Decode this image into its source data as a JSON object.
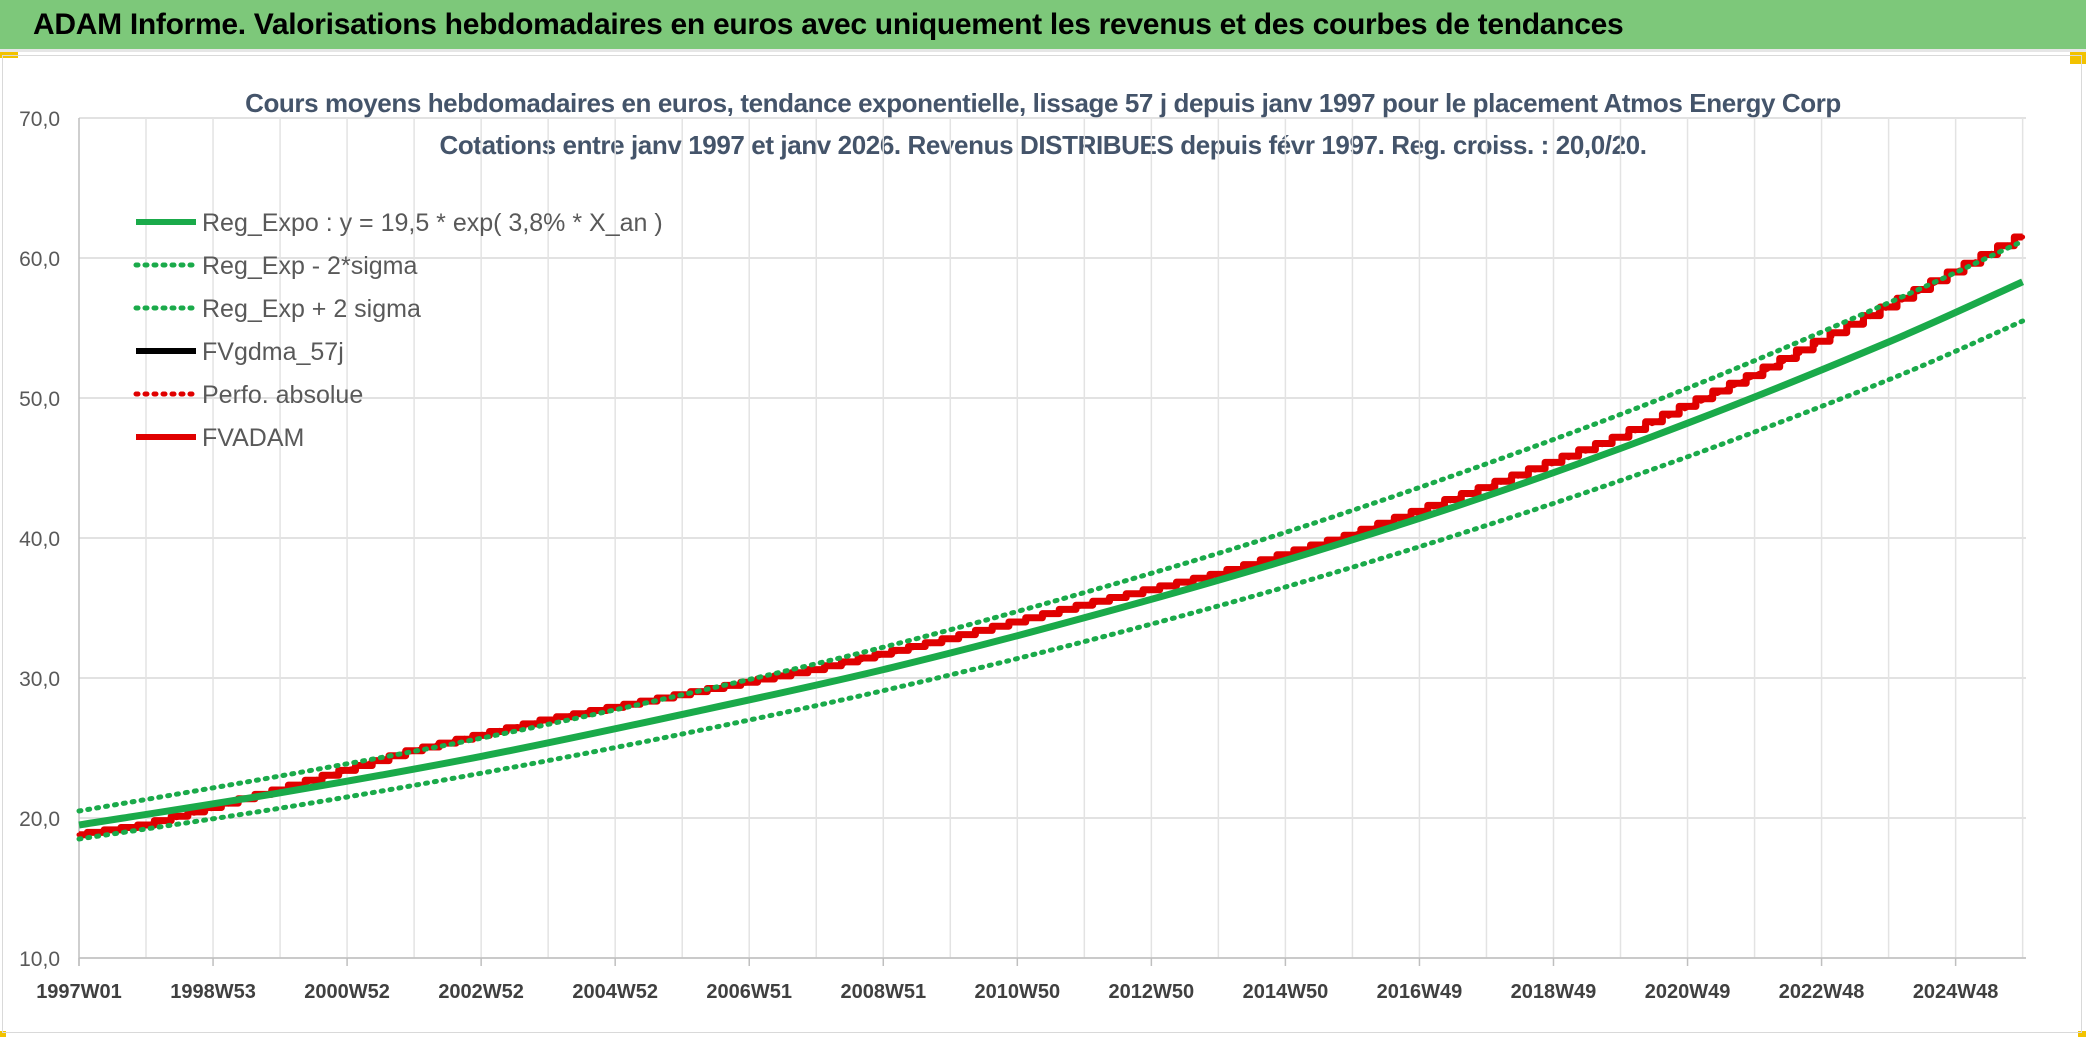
{
  "banner": {
    "title": "ADAM Informe. Valorisations hebdomadaires en euros avec uniquement les revenus et des courbes de tendances",
    "background": "#7dc87a"
  },
  "chart_data": {
    "type": "line",
    "title": "Cours moyens hebdomadaires en euros, tendance exponentielle, lissage 57 j depuis janv 1997 pour le placement Atmos Energy Corp",
    "subtitle": "Cotations entre janv 1997 et janv 2026. Revenus DISTRIBUES depuis févr 1997. Reg. croiss. : 20,0/20.",
    "xlabel": "",
    "ylabel": "",
    "ylim": [
      10,
      70
    ],
    "yticks": [
      "10,0",
      "20,0",
      "30,0",
      "40,0",
      "50,0",
      "60,0",
      "70,0"
    ],
    "xlim": [
      1997.0,
      2026.05
    ],
    "xticks": [
      {
        "label": "1997W01",
        "year": 1997.0
      },
      {
        "label": "1998W53",
        "year": 1999.0
      },
      {
        "label": "2000W52",
        "year": 2001.0
      },
      {
        "label": "2002W52",
        "year": 2003.0
      },
      {
        "label": "2004W52",
        "year": 2005.0
      },
      {
        "label": "2006W51",
        "year": 2007.0
      },
      {
        "label": "2008W51",
        "year": 2009.0
      },
      {
        "label": "2010W50",
        "year": 2011.0
      },
      {
        "label": "2012W50",
        "year": 2013.0
      },
      {
        "label": "2014W50",
        "year": 2015.0
      },
      {
        "label": "2016W49",
        "year": 2017.0
      },
      {
        "label": "2018W49",
        "year": 2019.0
      },
      {
        "label": "2020W49",
        "year": 2021.0
      },
      {
        "label": "2022W48",
        "year": 2023.0
      },
      {
        "label": "2024W48",
        "year": 2025.0
      }
    ],
    "grid": true,
    "legend_position": "top-left",
    "series": [
      {
        "name": "Reg_Expo : y = 19,5 * exp( 3,8% *  X_an )",
        "color": "#1aaa4a",
        "style": "solid",
        "x": [
          1997,
          2000,
          2003,
          2006,
          2009,
          2012,
          2015,
          2018,
          2021,
          2024,
          2026
        ],
        "y": [
          19.5,
          21.8,
          24.4,
          27.4,
          30.6,
          34.3,
          38.4,
          43.0,
          48.2,
          54.0,
          58.3
        ]
      },
      {
        "name": "Reg_Exp - 2*sigma",
        "color": "#1aaa4a",
        "style": "dotted",
        "x": [
          1997,
          2000,
          2003,
          2006,
          2009,
          2012,
          2015,
          2018,
          2021,
          2024,
          2026
        ],
        "y": [
          18.5,
          20.7,
          23.2,
          26.0,
          29.1,
          32.6,
          36.5,
          40.9,
          45.8,
          51.3,
          55.5
        ]
      },
      {
        "name": "Reg_Exp + 2 sigma",
        "color": "#1aaa4a",
        "style": "dotted",
        "x": [
          1997,
          2000,
          2003,
          2006,
          2009,
          2012,
          2015,
          2018,
          2021,
          2024,
          2026
        ],
        "y": [
          20.5,
          23.0,
          25.7,
          28.8,
          32.2,
          36.1,
          40.4,
          45.3,
          50.7,
          56.8,
          61.2
        ]
      },
      {
        "name": "FVgdma_57j",
        "color": "#000000",
        "style": "solid",
        "x": [],
        "y": []
      },
      {
        "name": "Perfo. absolue",
        "color": "#e00000",
        "style": "dotted",
        "x": [
          1997,
          1998,
          2000,
          2002,
          2004,
          2006,
          2008,
          2010,
          2012,
          2014,
          2016,
          2018,
          2020,
          2022,
          2024,
          2026
        ],
        "y": [
          18.8,
          19.5,
          22.0,
          24.8,
          27.0,
          28.8,
          30.6,
          32.8,
          35.2,
          37.4,
          40.2,
          43.6,
          47.2,
          51.6,
          56.5,
          61.5
        ]
      },
      {
        "name": "FVADAM",
        "color": "#e00000",
        "style": "solid",
        "x": [
          1997,
          1998,
          2000,
          2002,
          2004,
          2006,
          2008,
          2010,
          2012,
          2014,
          2016,
          2018,
          2020,
          2022,
          2024,
          2026
        ],
        "y": [
          18.8,
          19.5,
          22.0,
          24.8,
          27.0,
          28.8,
          30.6,
          32.8,
          35.2,
          37.4,
          40.2,
          43.6,
          47.2,
          51.6,
          56.5,
          61.5
        ]
      }
    ]
  }
}
